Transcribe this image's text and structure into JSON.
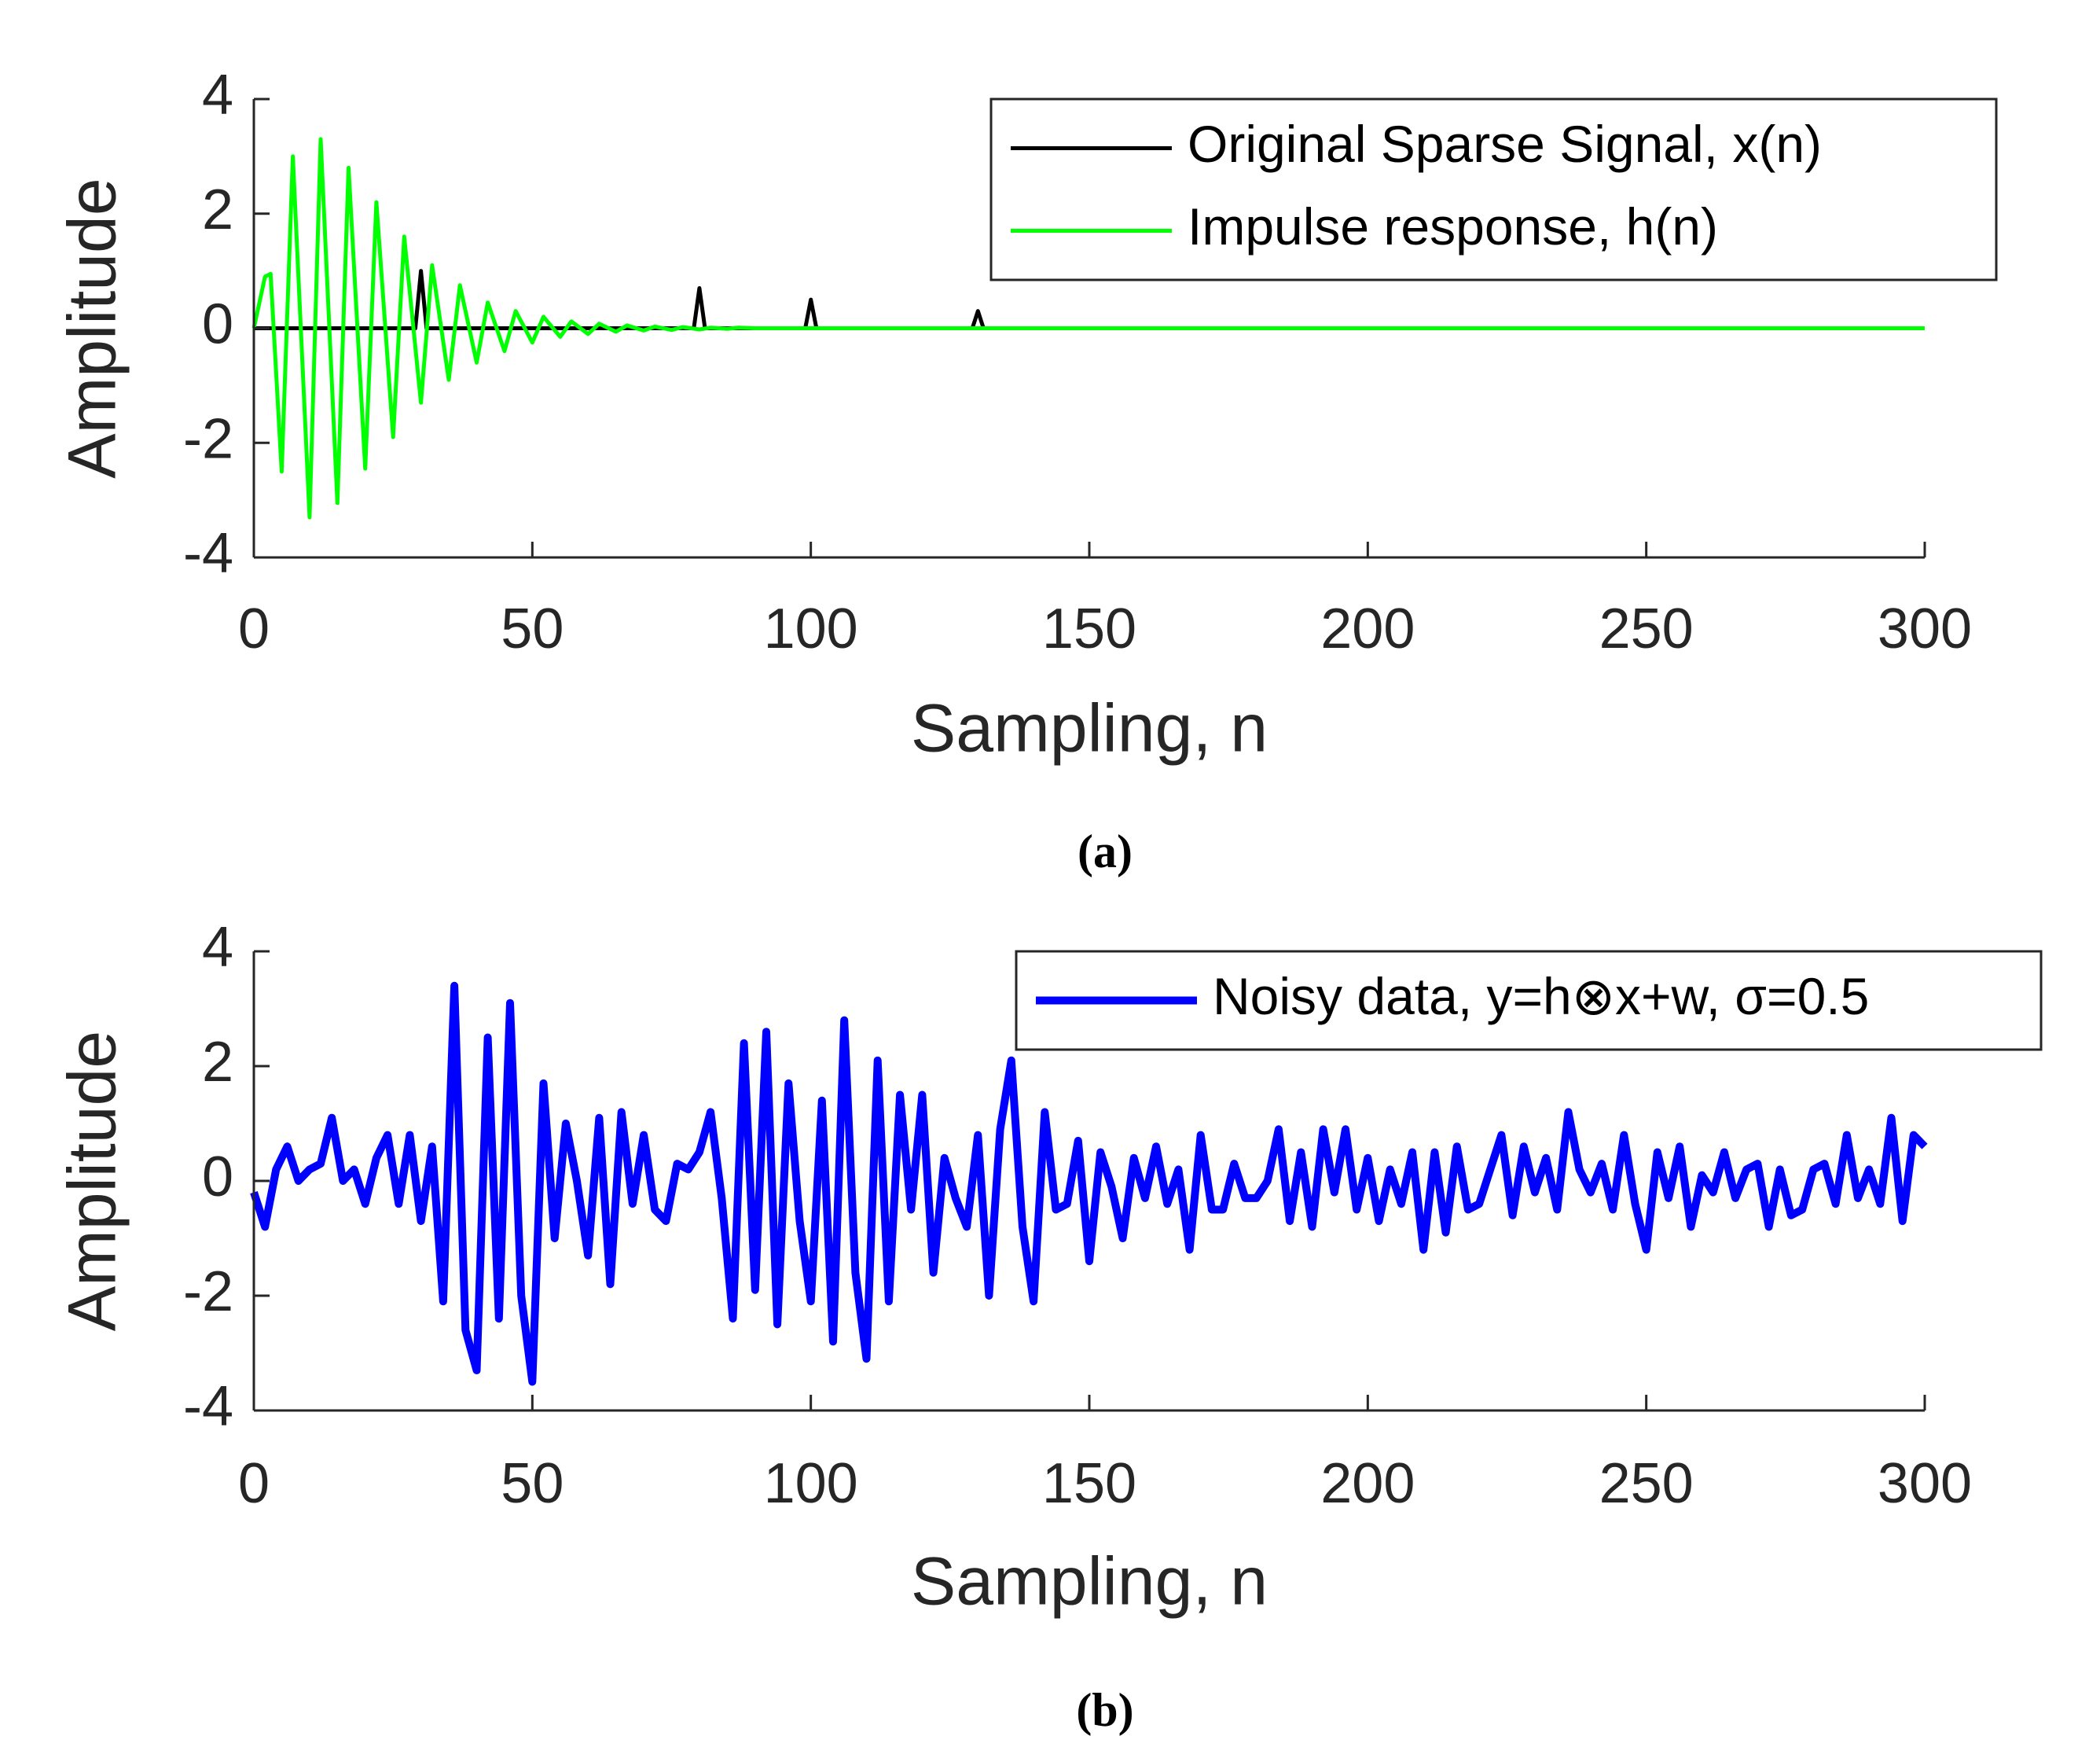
{
  "chart_data": [
    {
      "type": "line",
      "caption": "(a)",
      "xlabel": "Sampling, n",
      "ylabel": "Amplitude",
      "xlim": [
        0,
        300
      ],
      "xticks": [
        0,
        50,
        100,
        150,
        200,
        250,
        300
      ],
      "ylim": [
        -4,
        4
      ],
      "yticks": [
        -4,
        -2,
        0,
        2,
        4
      ],
      "legend": "upper right",
      "series": [
        {
          "name": "Original Sparse Signal, x(n)",
          "color": "#000000",
          "x": [
            0,
            29,
            30,
            31,
            79,
            80,
            81,
            99,
            100,
            101,
            129,
            130,
            131,
            300
          ],
          "values": [
            0,
            0,
            1,
            0,
            0,
            0.7,
            0,
            0,
            0.5,
            0,
            0,
            0.3,
            0,
            0
          ]
        },
        {
          "name": "Impulse response, h(n)",
          "color": "#00ff00",
          "x": [
            0,
            2,
            3,
            5,
            7,
            10,
            12,
            15,
            17,
            20,
            22,
            25,
            27,
            30,
            32,
            35,
            37,
            40,
            42,
            45,
            47,
            50,
            52,
            55,
            57,
            60,
            62,
            65,
            67,
            70,
            72,
            75,
            77,
            80,
            82,
            85,
            87,
            90,
            300
          ],
          "values": [
            0,
            0.9,
            0.95,
            -2.5,
            3.0,
            -3.3,
            3.3,
            -3.05,
            2.8,
            -2.45,
            2.2,
            -1.9,
            1.6,
            -1.3,
            1.1,
            -0.9,
            0.75,
            -0.6,
            0.45,
            -0.4,
            0.3,
            -0.25,
            0.2,
            -0.15,
            0.12,
            -0.1,
            0.08,
            -0.06,
            0.05,
            -0.04,
            0.03,
            -0.03,
            0.02,
            -0.02,
            0.01,
            -0.01,
            0.01,
            0,
            0
          ]
        }
      ]
    },
    {
      "type": "line",
      "caption": "(b)",
      "xlabel": "Sampling, n",
      "ylabel": "Amplitude",
      "xlim": [
        0,
        300
      ],
      "xticks": [
        0,
        50,
        100,
        150,
        200,
        250,
        300
      ],
      "ylim": [
        -4,
        4
      ],
      "yticks": [
        -4,
        -2,
        0,
        2,
        4
      ],
      "legend": "upper right",
      "x": [
        0,
        2,
        4,
        6,
        8,
        10,
        12,
        14,
        16,
        18,
        20,
        22,
        24,
        26,
        28,
        30,
        32,
        34,
        36,
        38,
        40,
        42,
        44,
        46,
        48,
        50,
        52,
        54,
        56,
        58,
        60,
        62,
        64,
        66,
        68,
        70,
        72,
        74,
        76,
        78,
        80,
        82,
        84,
        86,
        88,
        90,
        92,
        94,
        96,
        98,
        100,
        102,
        104,
        106,
        108,
        110,
        112,
        114,
        116,
        118,
        120,
        122,
        124,
        126,
        128,
        130,
        132,
        134,
        136,
        138,
        140,
        142,
        144,
        146,
        148,
        150,
        152,
        154,
        156,
        158,
        160,
        162,
        164,
        166,
        168,
        170,
        172,
        174,
        176,
        178,
        180,
        182,
        184,
        186,
        188,
        190,
        192,
        194,
        196,
        198,
        200,
        202,
        204,
        206,
        208,
        210,
        212,
        214,
        216,
        218,
        220,
        222,
        224,
        226,
        228,
        230,
        232,
        234,
        236,
        238,
        240,
        242,
        244,
        246,
        248,
        250,
        252,
        254,
        256,
        258,
        260,
        262,
        264,
        266,
        268,
        270,
        272,
        274,
        276,
        278,
        280,
        282,
        284,
        286,
        288,
        290,
        292,
        294,
        296,
        298,
        300
      ],
      "series": [
        {
          "name": "Noisy data, y=h⊗x+w, σ=0.5",
          "color": "#0000ff",
          "values": [
            -0.2,
            -0.8,
            0.2,
            0.6,
            0.0,
            0.2,
            0.3,
            1.1,
            0.0,
            0.2,
            -0.4,
            0.4,
            0.8,
            -0.4,
            0.8,
            -0.7,
            0.6,
            -2.1,
            3.4,
            -2.6,
            -3.3,
            2.5,
            -2.4,
            3.1,
            -2.0,
            -3.5,
            1.7,
            -1.0,
            1.0,
            0.0,
            -1.3,
            1.1,
            -1.8,
            1.2,
            -0.4,
            0.8,
            -0.5,
            -0.7,
            0.3,
            0.2,
            0.5,
            1.2,
            -0.3,
            -2.4,
            2.4,
            -1.9,
            2.6,
            -2.5,
            1.7,
            -0.7,
            -2.1,
            1.4,
            -2.8,
            2.8,
            -1.6,
            -3.1,
            2.1,
            -2.1,
            1.5,
            -0.5,
            1.5,
            -1.6,
            0.4,
            -0.3,
            -0.8,
            0.8,
            -2.0,
            0.9,
            2.1,
            -0.8,
            -2.1,
            1.2,
            -0.5,
            -0.4,
            0.7,
            -1.4,
            0.5,
            -0.1,
            -1.0,
            0.4,
            -0.3,
            0.6,
            -0.4,
            0.2,
            -1.2,
            0.8,
            -0.5,
            -0.5,
            0.3,
            -0.3,
            -0.3,
            0.0,
            0.9,
            -0.7,
            0.5,
            -0.8,
            0.9,
            -0.2,
            0.9,
            -0.5,
            0.4,
            -0.7,
            0.2,
            -0.4,
            0.5,
            -1.2,
            0.5,
            -0.9,
            0.6,
            -0.5,
            -0.4,
            0.2,
            0.8,
            -0.6,
            0.6,
            -0.2,
            0.4,
            -0.5,
            1.2,
            0.2,
            -0.2,
            0.3,
            -0.5,
            0.8,
            -0.4,
            -1.2,
            0.5,
            -0.3,
            0.6,
            -0.8,
            0.1,
            -0.2,
            0.5,
            -0.3,
            0.2,
            0.3,
            -0.8,
            0.2,
            -0.6,
            -0.5,
            0.2,
            0.3,
            -0.4,
            0.8,
            -0.3,
            0.2,
            -0.4,
            1.1,
            -0.7,
            0.8,
            0.6
          ]
        }
      ]
    }
  ]
}
